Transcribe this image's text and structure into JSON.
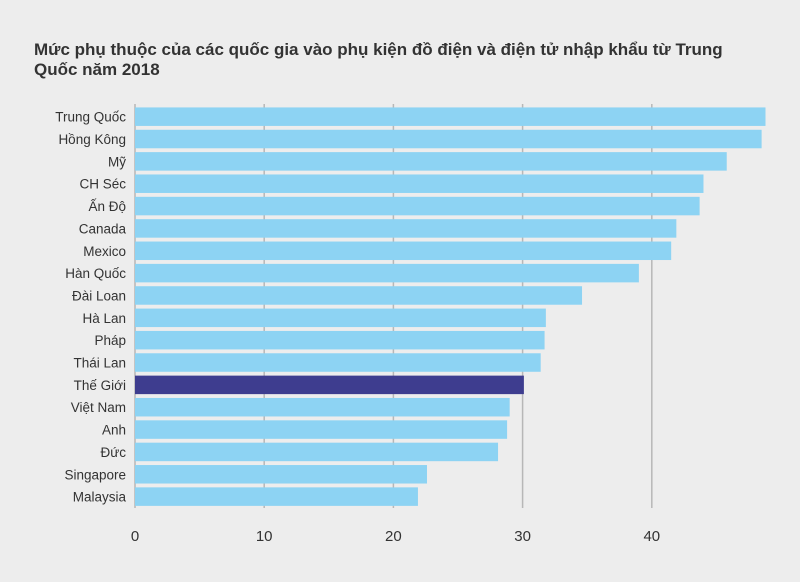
{
  "chart_data": {
    "type": "bar",
    "orientation": "horizontal",
    "title": "Mức phụ thuộc của các quốc gia vào phụ kiện đồ điện và điện tử nhập khẩu từ Trung Quốc năm 2018",
    "categories": [
      "Trung Quốc",
      "Hồng Kông",
      "Mỹ",
      "CH Séc",
      "Ấn Độ",
      "Canada",
      "Mexico",
      "Hàn Quốc",
      "Đài Loan",
      "Hà Lan",
      "Pháp",
      "Thái Lan",
      "Thế Giới",
      "Việt Nam",
      "Anh",
      "Đức",
      "Singapore",
      "Malaysia"
    ],
    "values": [
      48.8,
      48.5,
      45.8,
      44.0,
      43.7,
      41.9,
      41.5,
      39.0,
      34.6,
      31.8,
      31.7,
      31.4,
      30.1,
      29.0,
      28.8,
      28.1,
      22.6,
      21.9
    ],
    "highlight": "Thế Giới",
    "xlim": [
      0,
      50
    ],
    "xticks": [
      0,
      10,
      20,
      30,
      40
    ],
    "grid": true,
    "colors": {
      "bar": "#8dd3f3",
      "highlight": "#3e3d8f",
      "grid": "#b7b7b7",
      "background": "#ededed"
    }
  }
}
